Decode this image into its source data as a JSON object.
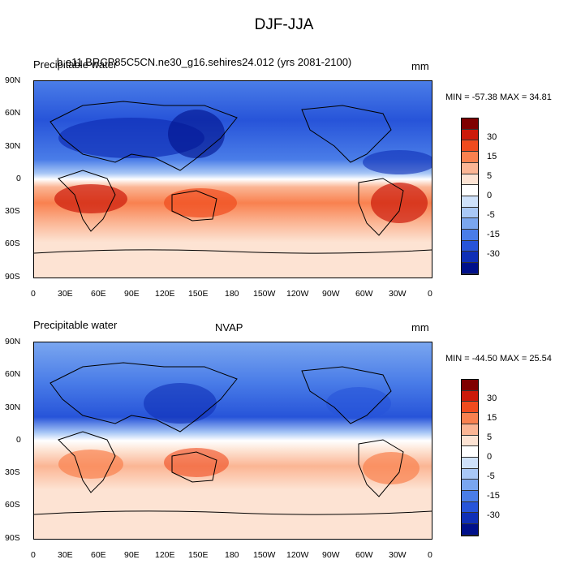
{
  "title": "DJF-JJA",
  "panels": [
    {
      "left_title": "Precipitable water",
      "center_title": "b.e11.BRCP85C5CN.ne30_g16.sehires24.012 (yrs 2081-2100)",
      "units": "mm",
      "minmax": "MIN = -57.38 MAX =  34.81"
    },
    {
      "left_title": "Precipitable water",
      "center_title": "NVAP",
      "units": "mm",
      "minmax": "MIN = -44.50 MAX =  25.54"
    }
  ],
  "lat_ticks": [
    "90N",
    "60N",
    "30N",
    "0",
    "30S",
    "60S",
    "90S"
  ],
  "lon_ticks": [
    "0",
    "30E",
    "60E",
    "90E",
    "120E",
    "150E",
    "180",
    "150W",
    "120W",
    "90W",
    "60W",
    "30W",
    "0"
  ],
  "colorbar": {
    "labels": [
      "30",
      "15",
      "5",
      "0",
      "-5",
      "-15",
      "-30"
    ],
    "colors": [
      "#7f0000",
      "#cc1a0a",
      "#f04b1e",
      "#f9814f",
      "#fbb594",
      "#fde3d3",
      "#ffffff",
      "#cfe2fb",
      "#a9c8f6",
      "#7aa6ef",
      "#4a7de8",
      "#2754d9",
      "#0f2fb6",
      "#00108a"
    ]
  }
}
